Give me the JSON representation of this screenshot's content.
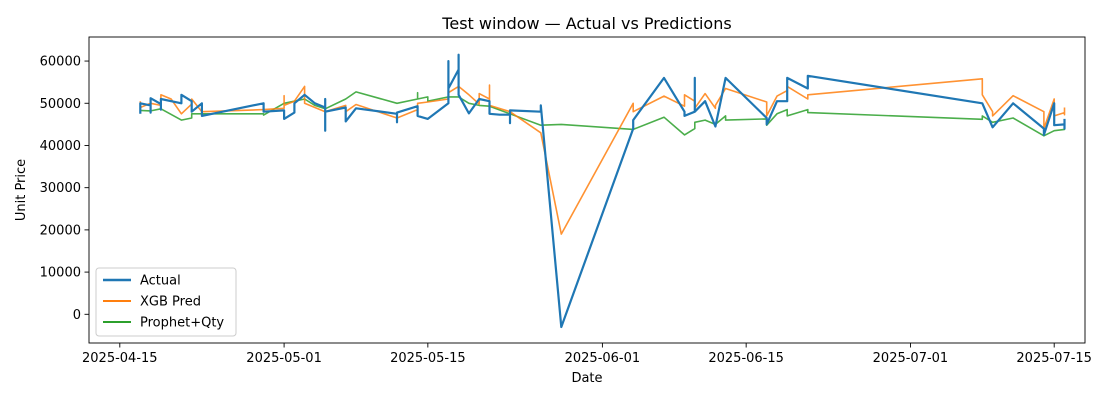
{
  "chart_data": {
    "type": "line",
    "title": "Test window — Actual vs Predictions",
    "xlabel": "Date",
    "ylabel": "Unit Price",
    "x_ticks": [
      "2025-04-15",
      "2025-05-01",
      "2025-05-15",
      "2025-06-01",
      "2025-06-15",
      "2025-07-01",
      "2025-07-15"
    ],
    "y_ticks": [
      0,
      10000,
      20000,
      30000,
      40000,
      50000,
      60000
    ],
    "xlim": [
      "2025-04-12",
      "2025-07-18"
    ],
    "ylim": [
      -6800,
      65700
    ],
    "legend_position": "lower-left",
    "grid": false,
    "series": [
      {
        "name": "Actual",
        "color": "#1f77b4",
        "width": 2.2,
        "points": [
          [
            "2025-04-17",
            47500
          ],
          [
            "2025-04-17",
            50000
          ],
          [
            "2025-04-18",
            49500
          ],
          [
            "2025-04-18",
            47800
          ],
          [
            "2025-04-18",
            51200
          ],
          [
            "2025-04-19",
            49800
          ],
          [
            "2025-04-19",
            48500
          ],
          [
            "2025-04-19",
            51000
          ],
          [
            "2025-04-21",
            50000
          ],
          [
            "2025-04-21",
            52000
          ],
          [
            "2025-04-22",
            50500
          ],
          [
            "2025-04-22",
            48000
          ],
          [
            "2025-04-23",
            50000
          ],
          [
            "2025-04-23",
            47000
          ],
          [
            "2025-04-29",
            50000
          ],
          [
            "2025-04-29",
            48000
          ],
          [
            "2025-05-01",
            48300
          ],
          [
            "2025-05-01",
            46300
          ],
          [
            "2025-05-02",
            47800
          ],
          [
            "2025-05-02",
            50000
          ],
          [
            "2025-05-03",
            52000
          ],
          [
            "2025-05-04",
            50000
          ],
          [
            "2025-05-05",
            49000
          ],
          [
            "2025-05-05",
            43500
          ],
          [
            "2025-05-05",
            51000
          ],
          [
            "2025-05-05",
            48000
          ],
          [
            "2025-05-07",
            49000
          ],
          [
            "2025-05-07",
            45700
          ],
          [
            "2025-05-08",
            48800
          ],
          [
            "2025-05-12",
            47500
          ],
          [
            "2025-05-12",
            45500
          ],
          [
            "2025-05-12",
            47800
          ],
          [
            "2025-05-14",
            49300
          ],
          [
            "2025-05-14",
            47000
          ],
          [
            "2025-05-15",
            46300
          ],
          [
            "2025-05-17",
            50000
          ],
          [
            "2025-05-17",
            60000
          ],
          [
            "2025-05-17",
            53500
          ],
          [
            "2025-05-18",
            58000
          ],
          [
            "2025-05-18",
            61500
          ],
          [
            "2025-05-18",
            52000
          ],
          [
            "2025-05-19",
            47600
          ],
          [
            "2025-05-20",
            51000
          ],
          [
            "2025-05-21",
            50500
          ],
          [
            "2025-05-21",
            47500
          ],
          [
            "2025-05-22",
            47300
          ],
          [
            "2025-05-23",
            47300
          ],
          [
            "2025-05-23",
            45300
          ],
          [
            "2025-05-23",
            48300
          ],
          [
            "2025-05-26",
            48000
          ],
          [
            "2025-05-26",
            49500
          ],
          [
            "2025-05-28",
            -3000
          ],
          [
            "2025-06-04",
            44000
          ],
          [
            "2025-06-04",
            46000
          ],
          [
            "2025-06-07",
            56000
          ],
          [
            "2025-06-09",
            48000
          ],
          [
            "2025-06-09",
            47000
          ],
          [
            "2025-06-10",
            48000
          ],
          [
            "2025-06-10",
            56000
          ],
          [
            "2025-06-10",
            48000
          ],
          [
            "2025-06-11",
            50500
          ],
          [
            "2025-06-12",
            44500
          ],
          [
            "2025-06-13",
            56000
          ],
          [
            "2025-06-17",
            46500
          ],
          [
            "2025-06-17",
            45000
          ],
          [
            "2025-06-18",
            50500
          ],
          [
            "2025-06-19",
            50500
          ],
          [
            "2025-06-19",
            56000
          ],
          [
            "2025-06-21",
            53500
          ],
          [
            "2025-06-21",
            56500
          ],
          [
            "2025-07-08",
            50000
          ],
          [
            "2025-07-09",
            44300
          ],
          [
            "2025-07-11",
            50000
          ],
          [
            "2025-07-14",
            44000
          ],
          [
            "2025-07-14",
            42500
          ],
          [
            "2025-07-15",
            50000
          ],
          [
            "2025-07-15",
            44800
          ],
          [
            "2025-07-16",
            45000
          ],
          [
            "2025-07-16",
            44000
          ],
          [
            "2025-07-16",
            46300
          ]
        ]
      },
      {
        "name": "XGB Pred",
        "color": "#ff7f0e",
        "width": 1.6,
        "points": [
          [
            "2025-04-17",
            50500
          ],
          [
            "2025-04-17",
            49000
          ],
          [
            "2025-04-18",
            50000
          ],
          [
            "2025-04-19",
            49500
          ],
          [
            "2025-04-19",
            52000
          ],
          [
            "2025-04-20",
            51000
          ],
          [
            "2025-04-21",
            47500
          ],
          [
            "2025-04-22",
            49800
          ],
          [
            "2025-04-22",
            51000
          ],
          [
            "2025-04-23",
            48000
          ],
          [
            "2025-04-29",
            48500
          ],
          [
            "2025-05-01",
            48800
          ],
          [
            "2025-05-01",
            51800
          ],
          [
            "2025-05-01",
            49500
          ],
          [
            "2025-05-02",
            50500
          ],
          [
            "2025-05-03",
            54000
          ],
          [
            "2025-05-03",
            50000
          ],
          [
            "2025-05-05",
            48000
          ],
          [
            "2025-05-07",
            49500
          ],
          [
            "2025-05-07",
            48000
          ],
          [
            "2025-05-08",
            49700
          ],
          [
            "2025-05-12",
            46500
          ],
          [
            "2025-05-14",
            48500
          ],
          [
            "2025-05-14",
            50000
          ],
          [
            "2025-05-15",
            50300
          ],
          [
            "2025-05-17",
            51000
          ],
          [
            "2025-05-17",
            52500
          ],
          [
            "2025-05-18",
            54000
          ],
          [
            "2025-05-19",
            52000
          ],
          [
            "2025-05-20",
            49800
          ],
          [
            "2025-05-20",
            52300
          ],
          [
            "2025-05-21",
            51000
          ],
          [
            "2025-05-21",
            54300
          ],
          [
            "2025-05-21",
            49500
          ],
          [
            "2025-05-23",
            48000
          ],
          [
            "2025-05-26",
            43000
          ],
          [
            "2025-05-28",
            19000
          ],
          [
            "2025-06-04",
            50000
          ],
          [
            "2025-06-04",
            48000
          ],
          [
            "2025-06-07",
            51700
          ],
          [
            "2025-06-09",
            49300
          ],
          [
            "2025-06-09",
            52000
          ],
          [
            "2025-06-10",
            50500
          ],
          [
            "2025-06-10",
            48800
          ],
          [
            "2025-06-11",
            52300
          ],
          [
            "2025-06-12",
            48800
          ],
          [
            "2025-06-12",
            49500
          ],
          [
            "2025-06-13",
            53500
          ],
          [
            "2025-06-17",
            50300
          ],
          [
            "2025-06-17",
            47000
          ],
          [
            "2025-06-18",
            51700
          ],
          [
            "2025-06-19",
            53000
          ],
          [
            "2025-06-19",
            54000
          ],
          [
            "2025-06-21",
            51000
          ],
          [
            "2025-06-21",
            52000
          ],
          [
            "2025-07-08",
            55800
          ],
          [
            "2025-07-08",
            52000
          ],
          [
            "2025-07-09",
            48000
          ],
          [
            "2025-07-09",
            47000
          ],
          [
            "2025-07-11",
            51800
          ],
          [
            "2025-07-14",
            48000
          ],
          [
            "2025-07-14",
            44000
          ],
          [
            "2025-07-15",
            51000
          ],
          [
            "2025-07-15",
            47000
          ],
          [
            "2025-07-16",
            47800
          ],
          [
            "2025-07-16",
            47300
          ],
          [
            "2025-07-16",
            49000
          ]
        ]
      },
      {
        "name": "Prophet+Qty",
        "color": "#2ca02c",
        "width": 1.6,
        "points": [
          [
            "2025-04-17",
            48300
          ],
          [
            "2025-04-18",
            48200
          ],
          [
            "2025-04-19",
            48700
          ],
          [
            "2025-04-21",
            46000
          ],
          [
            "2025-04-22",
            46500
          ],
          [
            "2025-04-22",
            47500
          ],
          [
            "2025-04-29",
            47500
          ],
          [
            "2025-04-29",
            47200
          ],
          [
            "2025-05-01",
            50000
          ],
          [
            "2025-05-03",
            51000
          ],
          [
            "2025-05-04",
            49500
          ],
          [
            "2025-05-05",
            48700
          ],
          [
            "2025-05-07",
            51000
          ],
          [
            "2025-05-08",
            52700
          ],
          [
            "2025-05-12",
            50000
          ],
          [
            "2025-05-14",
            51000
          ],
          [
            "2025-05-14",
            52500
          ],
          [
            "2025-05-14",
            51000
          ],
          [
            "2025-05-15",
            51500
          ],
          [
            "2025-05-15",
            50500
          ],
          [
            "2025-05-17",
            51500
          ],
          [
            "2025-05-18",
            51500
          ],
          [
            "2025-05-19",
            50000
          ],
          [
            "2025-05-20",
            49500
          ],
          [
            "2025-05-21",
            49300
          ],
          [
            "2025-05-26",
            44800
          ],
          [
            "2025-05-28",
            45000
          ],
          [
            "2025-06-04",
            43800
          ],
          [
            "2025-06-07",
            46700
          ],
          [
            "2025-06-09",
            42500
          ],
          [
            "2025-06-10",
            44000
          ],
          [
            "2025-06-10",
            45500
          ],
          [
            "2025-06-11",
            46000
          ],
          [
            "2025-06-12",
            45000
          ],
          [
            "2025-06-13",
            47000
          ],
          [
            "2025-06-13",
            46000
          ],
          [
            "2025-06-17",
            46300
          ],
          [
            "2025-06-17",
            44800
          ],
          [
            "2025-06-18",
            47500
          ],
          [
            "2025-06-19",
            48500
          ],
          [
            "2025-06-19",
            47000
          ],
          [
            "2025-06-21",
            48500
          ],
          [
            "2025-06-21",
            47800
          ],
          [
            "2025-07-08",
            46200
          ],
          [
            "2025-07-08",
            47000
          ],
          [
            "2025-07-09",
            45500
          ],
          [
            "2025-07-11",
            46500
          ],
          [
            "2025-07-14",
            42300
          ],
          [
            "2025-07-15",
            43500
          ],
          [
            "2025-07-16",
            43800
          ],
          [
            "2025-07-16",
            45500
          ]
        ]
      }
    ]
  }
}
